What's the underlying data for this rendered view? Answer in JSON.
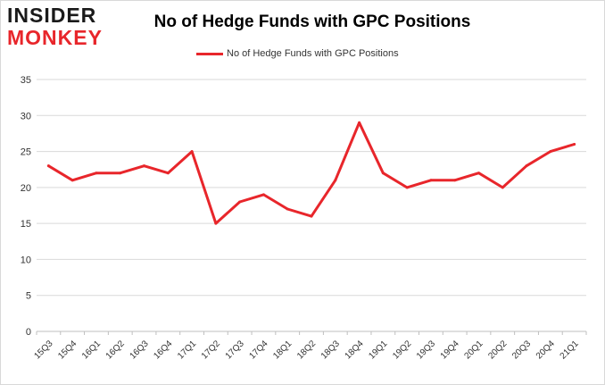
{
  "logo": {
    "line1": "INSIDER",
    "line2": "MONKEY"
  },
  "chart_data": {
    "type": "line",
    "title": "No of Hedge Funds with GPC Positions",
    "xlabel": "",
    "ylabel": "",
    "categories": [
      "15Q3",
      "15Q4",
      "16Q1",
      "16Q2",
      "16Q3",
      "16Q4",
      "17Q1",
      "17Q2",
      "17Q3",
      "17Q4",
      "18Q1",
      "18Q2",
      "18Q3",
      "18Q4",
      "19Q1",
      "19Q2",
      "19Q3",
      "19Q4",
      "20Q1",
      "20Q2",
      "20Q3",
      "20Q4",
      "21Q1"
    ],
    "series": [
      {
        "name": "No of Hedge Funds with GPC Positions",
        "color": "#e8262b",
        "values": [
          23,
          21,
          22,
          22,
          23,
          22,
          25,
          15,
          18,
          19,
          17,
          16,
          21,
          29,
          22,
          20,
          21,
          21,
          22,
          20,
          23,
          25,
          26
        ]
      }
    ],
    "ylim": [
      0,
      35
    ],
    "yticks": [
      0,
      5,
      10,
      15,
      20,
      25,
      30,
      35
    ],
    "grid": true,
    "legend_position": "top-center"
  }
}
